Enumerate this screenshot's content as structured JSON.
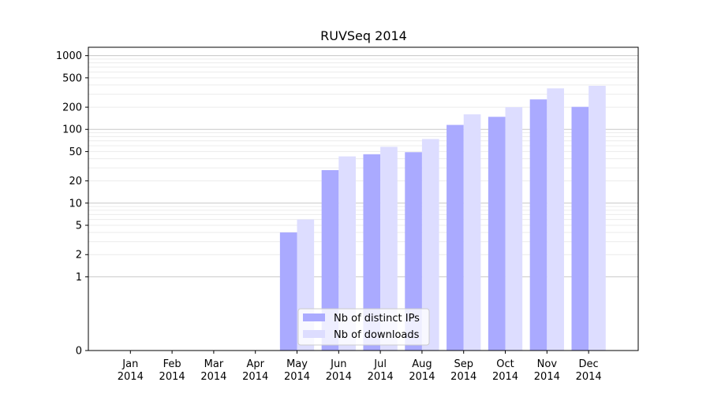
{
  "chart_data": {
    "type": "bar",
    "title": "RUVSeq 2014",
    "xlabel": "",
    "ylabel": "",
    "yscale": "symlog",
    "ylim": [
      0,
      1300
    ],
    "grid": "horizontal",
    "legend_position": "lower-center",
    "categories": [
      {
        "month": "Jan",
        "year": "2014"
      },
      {
        "month": "Feb",
        "year": "2014"
      },
      {
        "month": "Mar",
        "year": "2014"
      },
      {
        "month": "Apr",
        "year": "2014"
      },
      {
        "month": "May",
        "year": "2014"
      },
      {
        "month": "Jun",
        "year": "2014"
      },
      {
        "month": "Jul",
        "year": "2014"
      },
      {
        "month": "Aug",
        "year": "2014"
      },
      {
        "month": "Sep",
        "year": "2014"
      },
      {
        "month": "Oct",
        "year": "2014"
      },
      {
        "month": "Nov",
        "year": "2014"
      },
      {
        "month": "Dec",
        "year": "2014"
      }
    ],
    "yticks": [
      0,
      1,
      2,
      5,
      10,
      20,
      50,
      100,
      200,
      500,
      1000
    ],
    "series": [
      {
        "name": "Nb of distinct IPs",
        "color": "#aaaaff",
        "values": [
          0,
          0,
          0,
          0,
          4,
          28,
          46,
          49,
          115,
          148,
          255,
          202
        ]
      },
      {
        "name": "Nb of downloads",
        "color": "#ddddff",
        "values": [
          0,
          0,
          0,
          0,
          6,
          43,
          58,
          74,
          160,
          200,
          360,
          390
        ]
      }
    ]
  }
}
